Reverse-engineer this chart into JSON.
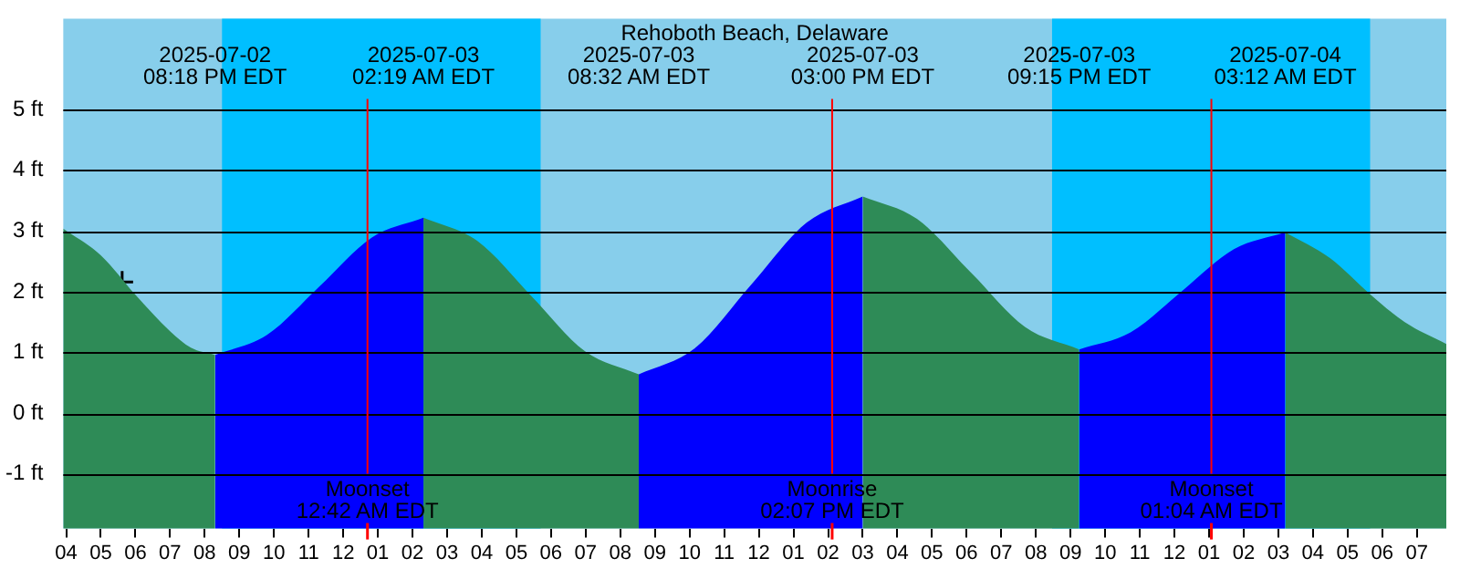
{
  "chart_data": {
    "type": "area",
    "title": "Rehoboth Beach, Delaware",
    "xlim": [
      "2025-07-02T15:55",
      "2025-07-04T07:51"
    ],
    "xticks": [
      {
        "value": "2025-07-02T16:00",
        "label": "04"
      },
      {
        "value": "2025-07-02T17:00",
        "label": "05"
      },
      {
        "value": "2025-07-02T18:00",
        "label": "06"
      },
      {
        "value": "2025-07-02T19:00",
        "label": "07"
      },
      {
        "value": "2025-07-02T20:00",
        "label": "08"
      },
      {
        "value": "2025-07-02T21:00",
        "label": "09"
      },
      {
        "value": "2025-07-02T22:00",
        "label": "10"
      },
      {
        "value": "2025-07-02T23:00",
        "label": "11"
      },
      {
        "value": "2025-07-03T00:00",
        "label": "12"
      },
      {
        "value": "2025-07-03T01:00",
        "label": "01"
      },
      {
        "value": "2025-07-03T02:00",
        "label": "02"
      },
      {
        "value": "2025-07-03T03:00",
        "label": "03"
      },
      {
        "value": "2025-07-03T04:00",
        "label": "04"
      },
      {
        "value": "2025-07-03T05:00",
        "label": "05"
      },
      {
        "value": "2025-07-03T06:00",
        "label": "06"
      },
      {
        "value": "2025-07-03T07:00",
        "label": "07"
      },
      {
        "value": "2025-07-03T08:00",
        "label": "08"
      },
      {
        "value": "2025-07-03T09:00",
        "label": "09"
      },
      {
        "value": "2025-07-03T10:00",
        "label": "10"
      },
      {
        "value": "2025-07-03T11:00",
        "label": "11"
      },
      {
        "value": "2025-07-03T12:00",
        "label": "12"
      },
      {
        "value": "2025-07-03T13:00",
        "label": "01"
      },
      {
        "value": "2025-07-03T14:00",
        "label": "02"
      },
      {
        "value": "2025-07-03T15:00",
        "label": "03"
      },
      {
        "value": "2025-07-03T16:00",
        "label": "04"
      },
      {
        "value": "2025-07-03T17:00",
        "label": "05"
      },
      {
        "value": "2025-07-03T18:00",
        "label": "06"
      },
      {
        "value": "2025-07-03T19:00",
        "label": "07"
      },
      {
        "value": "2025-07-03T20:00",
        "label": "08"
      },
      {
        "value": "2025-07-03T21:00",
        "label": "09"
      },
      {
        "value": "2025-07-03T22:00",
        "label": "10"
      },
      {
        "value": "2025-07-03T23:00",
        "label": "11"
      },
      {
        "value": "2025-07-04T00:00",
        "label": "12"
      },
      {
        "value": "2025-07-04T01:00",
        "label": "01"
      },
      {
        "value": "2025-07-04T02:00",
        "label": "02"
      },
      {
        "value": "2025-07-04T03:00",
        "label": "03"
      },
      {
        "value": "2025-07-04T04:00",
        "label": "04"
      },
      {
        "value": "2025-07-04T05:00",
        "label": "05"
      },
      {
        "value": "2025-07-04T06:00",
        "label": "06"
      },
      {
        "value": "2025-07-04T07:00",
        "label": "07"
      }
    ],
    "ylim": [
      -1.9,
      6.5
    ],
    "yticks": [
      {
        "value": -1,
        "label": "-1 ft"
      },
      {
        "value": 0,
        "label": "0 ft"
      },
      {
        "value": 1,
        "label": "1 ft"
      },
      {
        "value": 2,
        "label": "2 ft"
      },
      {
        "value": 3,
        "label": "3 ft"
      },
      {
        "value": 4,
        "label": "4 ft"
      },
      {
        "value": 5,
        "label": "5 ft"
      }
    ],
    "grid": "y",
    "legend": false,
    "bands": [
      {
        "axis": "x",
        "from": "2025-07-02T20:30",
        "to": "2025-07-03T05:42",
        "color": "#00bfff"
      },
      {
        "axis": "x",
        "from": "2025-07-03T20:28",
        "to": "2025-07-04T05:39",
        "color": "#00bfff"
      }
    ],
    "ref_lines": [
      {
        "axis": "x",
        "value": "2025-07-03T00:42",
        "label": "Moonset\n12:42 AM EDT",
        "color": "#ff0000"
      },
      {
        "axis": "x",
        "value": "2025-07-03T14:07",
        "label": "Moonrise\n02:07 PM EDT",
        "color": "#ff0000"
      },
      {
        "axis": "x",
        "value": "2025-07-04T01:04",
        "label": "Moonset\n01:04 AM EDT",
        "color": "#ff0000"
      }
    ],
    "series": [
      {
        "color": "#2e8b57",
        "x": [
          "2025-07-02T15:55",
          "2025-07-02T17:00",
          "2025-07-02T18:00",
          "2025-07-02T19:00",
          "2025-07-02T19:36",
          "2025-07-02T20:18"
        ],
        "values": [
          3.04,
          2.6,
          1.95,
          1.35,
          1.08,
          0.96
        ]
      },
      {
        "color": "#0000ff",
        "x": [
          "2025-07-02T20:18",
          "2025-07-02T21:48",
          "2025-07-02T23:19",
          "2025-07-03T00:49",
          "2025-07-03T02:19"
        ],
        "values": [
          0.96,
          1.29,
          2.09,
          2.89,
          3.22
        ]
      },
      {
        "color": "#2e8b57",
        "x": [
          "2025-07-03T02:19",
          "2025-07-03T03:52",
          "2025-07-03T05:26",
          "2025-07-03T06:59",
          "2025-07-03T08:32"
        ],
        "values": [
          3.22,
          2.84,
          1.93,
          1.02,
          0.64
        ]
      },
      {
        "color": "#0000ff",
        "x": [
          "2025-07-03T08:32",
          "2025-07-03T10:09",
          "2025-07-03T11:46",
          "2025-07-03T13:23",
          "2025-07-03T15:00"
        ],
        "values": [
          0.64,
          1.07,
          2.11,
          3.14,
          3.57
        ]
      },
      {
        "color": "#2e8b57",
        "x": [
          "2025-07-03T15:00",
          "2025-07-03T16:34",
          "2025-07-03T18:08",
          "2025-07-03T19:41",
          "2025-07-03T21:15"
        ],
        "values": [
          3.57,
          3.2,
          2.31,
          1.42,
          1.05
        ]
      },
      {
        "color": "#0000ff",
        "x": [
          "2025-07-03T21:15",
          "2025-07-03T22:44",
          "2025-07-04T00:14",
          "2025-07-04T01:43",
          "2025-07-04T03:12"
        ],
        "values": [
          1.05,
          1.33,
          2.02,
          2.7,
          2.98
        ]
      },
      {
        "color": "#2e8b57",
        "x": [
          "2025-07-04T03:12",
          "2025-07-04T04:30",
          "2025-07-04T05:39",
          "2025-07-04T06:39",
          "2025-07-04T07:51"
        ],
        "values": [
          2.98,
          2.55,
          1.96,
          1.5,
          1.14
        ]
      },
      {
        "type": "scatter",
        "color": "#000000",
        "marker": "cross",
        "x": [
          "2025-07-02T17:37"
        ],
        "values": [
          2.16
        ]
      }
    ],
    "annotations": [
      "2025-07-02\n08:18 PM EDT",
      "2025-07-03\n02:19 AM EDT",
      "2025-07-03\n08:32 AM EDT",
      "2025-07-03\n03:00 PM EDT",
      "2025-07-03\n09:15 PM EDT",
      "2025-07-04\n03:12 AM EDT"
    ]
  }
}
